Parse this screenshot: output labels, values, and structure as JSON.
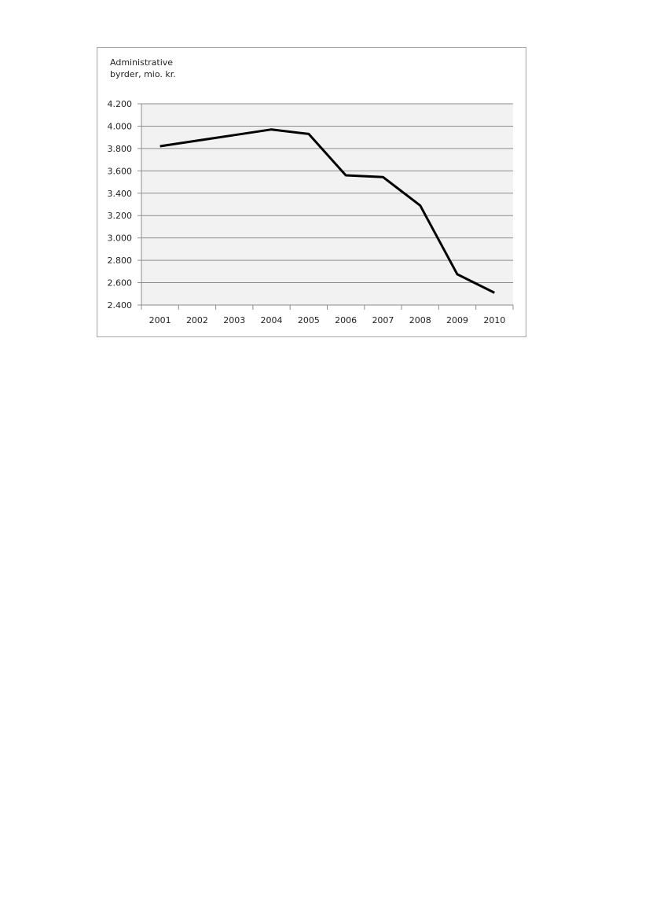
{
  "chart_data": {
    "type": "line",
    "ylabel_lines": [
      "Administrative",
      "byrder, mio. kr."
    ],
    "ylim": [
      2400,
      4200
    ],
    "y_ticks": [
      4200,
      4000,
      3800,
      3600,
      3400,
      3200,
      3000,
      2800,
      2600,
      2400
    ],
    "y_tick_labels": [
      "4.200",
      "4.000",
      "3.800",
      "3.600",
      "3.400",
      "3.200",
      "3.000",
      "2.800",
      "2.600",
      "2.400"
    ],
    "categories": [
      "2001",
      "2002",
      "2003",
      "2004",
      "2005",
      "2006",
      "2007",
      "2008",
      "2009",
      "2010"
    ],
    "values": [
      3820,
      3870,
      3920,
      3970,
      3930,
      3560,
      3545,
      3290,
      2675,
      2510
    ],
    "grid": true,
    "legend": "none",
    "colors": {
      "line": "#000000",
      "plot_background": "#f2f2f2",
      "gridline": "#8c8c8c",
      "frame": "#a6a6a6"
    }
  }
}
